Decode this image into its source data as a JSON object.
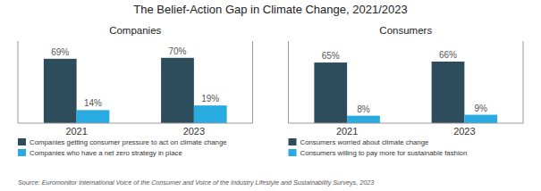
{
  "title": "The Belief-Action Gap in Climate Change, 2021/2023",
  "annotations": [
    "Source: Euromonitor International Voice of the Consumer and Voice of the Industry Lifestyle and Sustainability Surveys, 2023"
  ],
  "chart_data": [
    {
      "type": "bar",
      "title": "Companies",
      "categories": [
        "2021",
        "2023"
      ],
      "series": [
        {
          "name": "Companies getting consumer pressure to act on climate change",
          "color": "#2E4D5C",
          "values": [
            69,
            70
          ],
          "value_labels": [
            "69%",
            "70%"
          ]
        },
        {
          "name": "Companies who have a net zero strategy in place",
          "color": "#29ABE2",
          "values": [
            14,
            19
          ],
          "value_labels": [
            "14%",
            "19%"
          ]
        }
      ],
      "ylim": [
        0,
        88
      ],
      "tick_labels": "x",
      "data_labels": true,
      "grid": false,
      "legend": "bottom"
    },
    {
      "type": "bar",
      "title": "Consumers",
      "categories": [
        "2021",
        "2023"
      ],
      "series": [
        {
          "name": "Consumers worried about climate change",
          "color": "#2E4D5C",
          "values": [
            65,
            66
          ],
          "value_labels": [
            "65%",
            "66%"
          ]
        },
        {
          "name": "Consumers willing to pay more for sustainable fashion",
          "color": "#29ABE2",
          "values": [
            8,
            9
          ],
          "value_labels": [
            "8%",
            "9%"
          ]
        }
      ],
      "ylim": [
        0,
        88
      ],
      "tick_labels": "x",
      "data_labels": true,
      "grid": false,
      "legend": "bottom"
    }
  ]
}
